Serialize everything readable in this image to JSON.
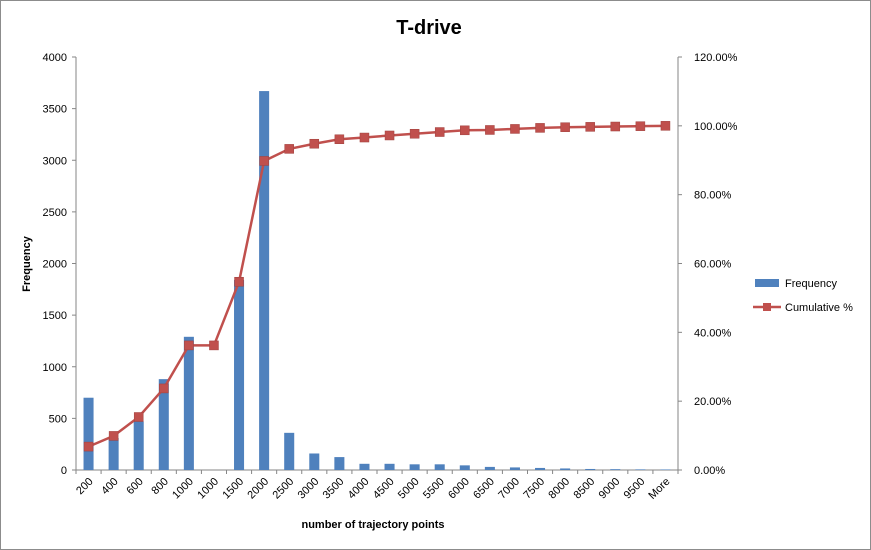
{
  "chart_data": {
    "type": "bar+line",
    "title": "T-drive",
    "xlabel": "number of trajectory points",
    "ylabel": "Frequency",
    "y2label": "",
    "categories": [
      "200",
      "400",
      "600",
      "800",
      "1000",
      "1000",
      "1500",
      "2000",
      "2500",
      "3000",
      "3500",
      "4000",
      "4500",
      "5000",
      "5500",
      "6000",
      "6500",
      "7000",
      "7500",
      "8000",
      "8500",
      "9000",
      "9500",
      "More"
    ],
    "ylim": [
      0,
      4000
    ],
    "y_ticks": [
      "0",
      "500",
      "1000",
      "1500",
      "2000",
      "2500",
      "3000",
      "3500",
      "4000"
    ],
    "y2lim": [
      0,
      120
    ],
    "y2_ticks": [
      "0.00%",
      "20.00%",
      "40.00%",
      "60.00%",
      "80.00%",
      "100.00%",
      "120.00%"
    ],
    "grid": false,
    "legend_position": "right",
    "series": [
      {
        "name": "Frequency",
        "kind": "bar",
        "axis": "left",
        "color": "#4f81bd",
        "values": [
          700,
          310,
          470,
          880,
          1290,
          0,
          1840,
          3670,
          360,
          160,
          125,
          60,
          60,
          55,
          55,
          45,
          30,
          25,
          20,
          15,
          10,
          8,
          6,
          5
        ]
      },
      {
        "name": "Cumulative %",
        "kind": "line",
        "axis": "right",
        "color": "#c0504d",
        "values": [
          6.8,
          9.9,
          15.4,
          23.7,
          36.2,
          36.2,
          54.7,
          89.8,
          93.3,
          94.8,
          96.1,
          96.6,
          97.2,
          97.7,
          98.2,
          98.7,
          98.8,
          99.1,
          99.4,
          99.6,
          99.7,
          99.8,
          99.9,
          100.0
        ]
      }
    ]
  }
}
